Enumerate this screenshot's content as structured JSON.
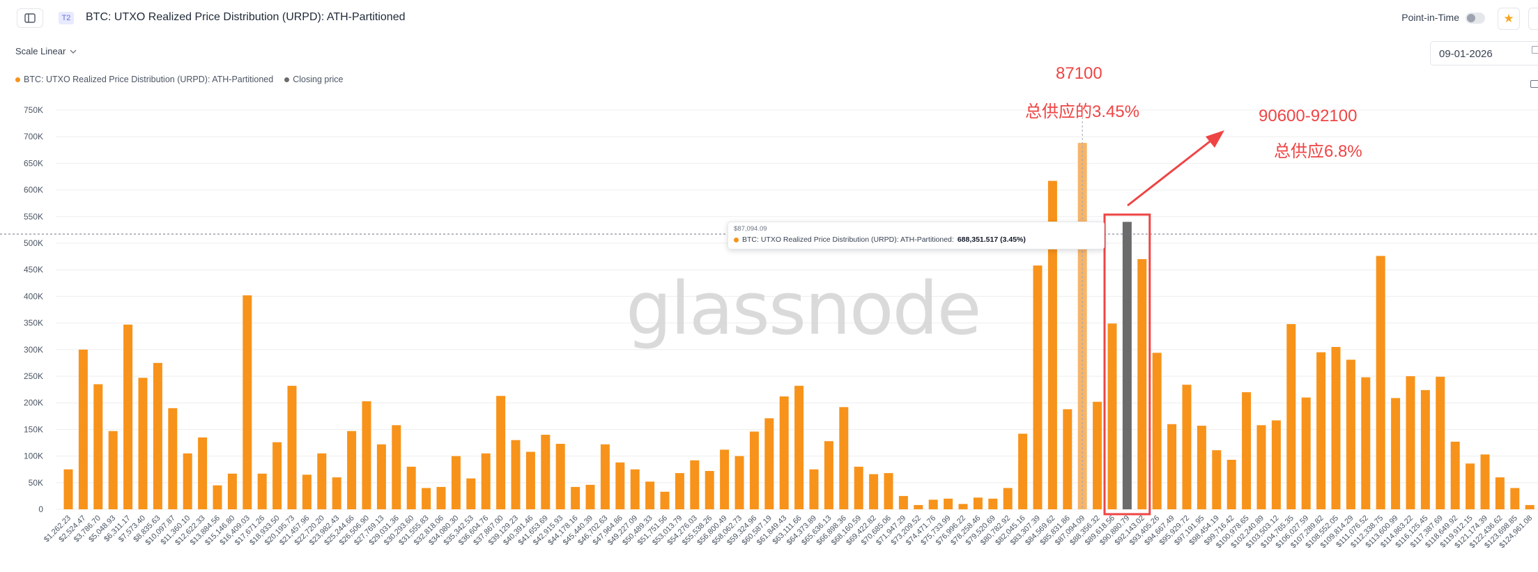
{
  "header": {
    "badge": "T2",
    "title": "BTC: UTXO Realized Price Distribution (URPD): ATH-Partitioned",
    "point_in_time_label": "Point-in-Time"
  },
  "controls": {
    "scale_label": "Scale Linear",
    "date_value": "09-01-2026"
  },
  "legend": {
    "items": [
      {
        "label": "BTC: UTXO Realized Price Distribution (URPD): ATH-Partitioned",
        "color": "#f7931a"
      },
      {
        "label": "Closing price",
        "color": "#6b6b6b"
      }
    ]
  },
  "tooltip": {
    "x_label": "$87,094.09",
    "series_label": "BTC: UTXO Realized Price Distribution (URPD): ATH-Partitioned:",
    "value": "688,351.517 (3.45%)"
  },
  "watermark": "glassnode",
  "annotations": {
    "left_price": "87100",
    "left_share": "总供应的3.45%",
    "right_range": "90600-92100",
    "right_share": "总供应6.8%"
  },
  "colors": {
    "bar": "#f7931a",
    "closing_bar": "#6b6b6b",
    "highlight_bar": "#f6b56a",
    "annotation": "#ef4444"
  },
  "chart_data": {
    "type": "bar",
    "ylim": [
      0,
      750000
    ],
    "y_ticks": [
      0,
      50000,
      100000,
      150000,
      200000,
      250000,
      300000,
      350000,
      400000,
      450000,
      500000,
      550000,
      600000,
      650000,
      700000,
      750000
    ],
    "y_tick_labels": [
      "0",
      "50K",
      "100K",
      "150K",
      "200K",
      "250K",
      "300K",
      "350K",
      "400K",
      "450K",
      "500K",
      "550K",
      "600K",
      "650K",
      "700K",
      "750K"
    ],
    "x_tick_labels": [
      "$1,262.23",
      "$2,524.47",
      "$3,786.70",
      "$5,048.93",
      "$6,311.17",
      "$7,573.40",
      "$8,835.63",
      "$10,097.87",
      "$11,360.10",
      "$12,622.33",
      "$13,884.56",
      "$15,146.80",
      "$16,409.03",
      "$17,671.26",
      "$18,933.50",
      "$20,195.73",
      "$21,457.96",
      "$22,720.20",
      "$23,982.43",
      "$25,244.66",
      "$26,506.90",
      "$27,769.13",
      "$29,031.36",
      "$30,293.60",
      "$31,555.83",
      "$32,818.06",
      "$34,080.30",
      "$35,342.53",
      "$36,604.76",
      "$37,867.00",
      "$39,129.23",
      "$40,391.46",
      "$41,653.69",
      "$42,915.93",
      "$44,178.16",
      "$45,440.39",
      "$46,702.63",
      "$47,964.86",
      "$49,227.09",
      "$50,489.33",
      "$51,751.56",
      "$53,013.79",
      "$54,276.03",
      "$55,538.26",
      "$56,800.49",
      "$58,062.73",
      "$59,324.96",
      "$60,587.19",
      "$61,849.43",
      "$63,111.66",
      "$64,373.89",
      "$65,636.13",
      "$66,898.36",
      "$68,160.59",
      "$69,422.82",
      "$70,685.06",
      "$71,947.29",
      "$73,209.52",
      "$74,471.76",
      "$75,733.99",
      "$76,996.22",
      "$78,258.46",
      "$79,520.69",
      "$80,782.92",
      "$82,045.16",
      "$83,307.39",
      "$84,569.62",
      "$85,831.86",
      "$87,094.09",
      "$88,356.32",
      "$89,618.56",
      "$90,880.79",
      "$92,143.02",
      "$93,405.26",
      "$94,667.49",
      "$95,929.72",
      "$97,191.95",
      "$98,454.19",
      "$99,716.42",
      "$100,978.65",
      "$102,240.89",
      "$103,503.12",
      "$104,765.35",
      "$106,027.59",
      "$107,289.82",
      "$108,552.05",
      "$109,814.29",
      "$111,076.52",
      "$112,338.75",
      "$113,600.99",
      "$114,863.22",
      "$116,125.45",
      "$117,387.69",
      "$118,649.92",
      "$119,912.15",
      "$121,174.39",
      "$122,436.62",
      "$123,698.85",
      "$124,961.08"
    ],
    "values": [
      75000,
      300000,
      235000,
      147000,
      347000,
      247000,
      275000,
      190000,
      105000,
      135000,
      45000,
      67000,
      402000,
      67000,
      126000,
      232000,
      65000,
      105000,
      60000,
      147000,
      203000,
      122000,
      158000,
      80000,
      40000,
      42000,
      100000,
      58000,
      105000,
      213000,
      130000,
      108000,
      140000,
      123000,
      42000,
      46000,
      122000,
      88000,
      75000,
      52000,
      33000,
      68000,
      92000,
      72000,
      112000,
      100000,
      146000,
      171000,
      212000,
      232000,
      75000,
      128000,
      192000,
      80000,
      66000,
      68000,
      25000,
      8000,
      18000,
      20000,
      10000,
      22000,
      20000,
      40000,
      142000,
      458000,
      617000,
      188000,
      688351,
      202000,
      349000,
      540000,
      470000,
      294000,
      160000,
      234000,
      157000,
      111000,
      93000,
      220000,
      158000,
      167000,
      348000,
      210000,
      295000,
      305000,
      281000,
      248000,
      476000,
      209000,
      250000,
      224000,
      249000,
      127000,
      86000,
      103000,
      60000,
      40000,
      8000
    ],
    "highlight_index": 68,
    "closing_price_index": 71,
    "reference_value": 517000
  }
}
